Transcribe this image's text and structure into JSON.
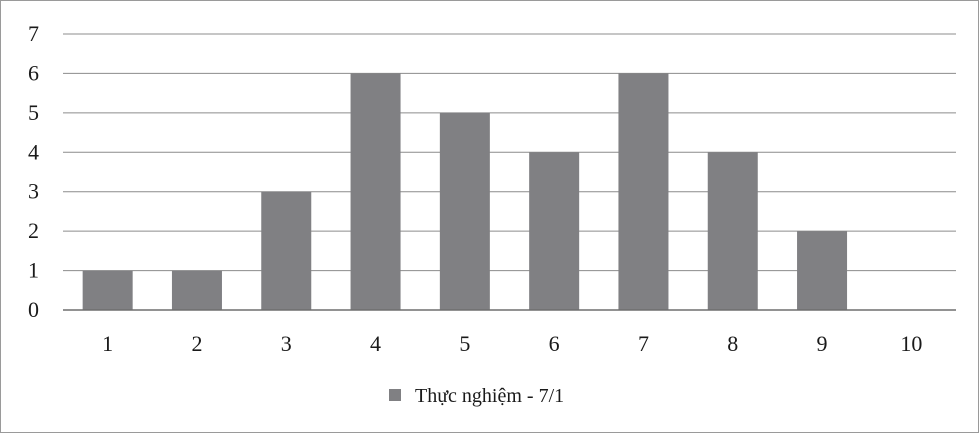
{
  "chart_data": {
    "type": "bar",
    "categories": [
      "1",
      "2",
      "3",
      "4",
      "5",
      "6",
      "7",
      "8",
      "9",
      "10"
    ],
    "series": [
      {
        "name": "Thực nghiệm - 7/1",
        "values": [
          1,
          1,
          3,
          6,
          5,
          4,
          6,
          4,
          2,
          0
        ],
        "color": "#808083"
      }
    ],
    "y_ticks": [
      "0",
      "1",
      "2",
      "3",
      "4",
      "5",
      "6",
      "7"
    ],
    "ylim": [
      0,
      7
    ],
    "grid": true,
    "legend_position": "bottom",
    "title": "",
    "xlabel": "",
    "ylabel": ""
  }
}
